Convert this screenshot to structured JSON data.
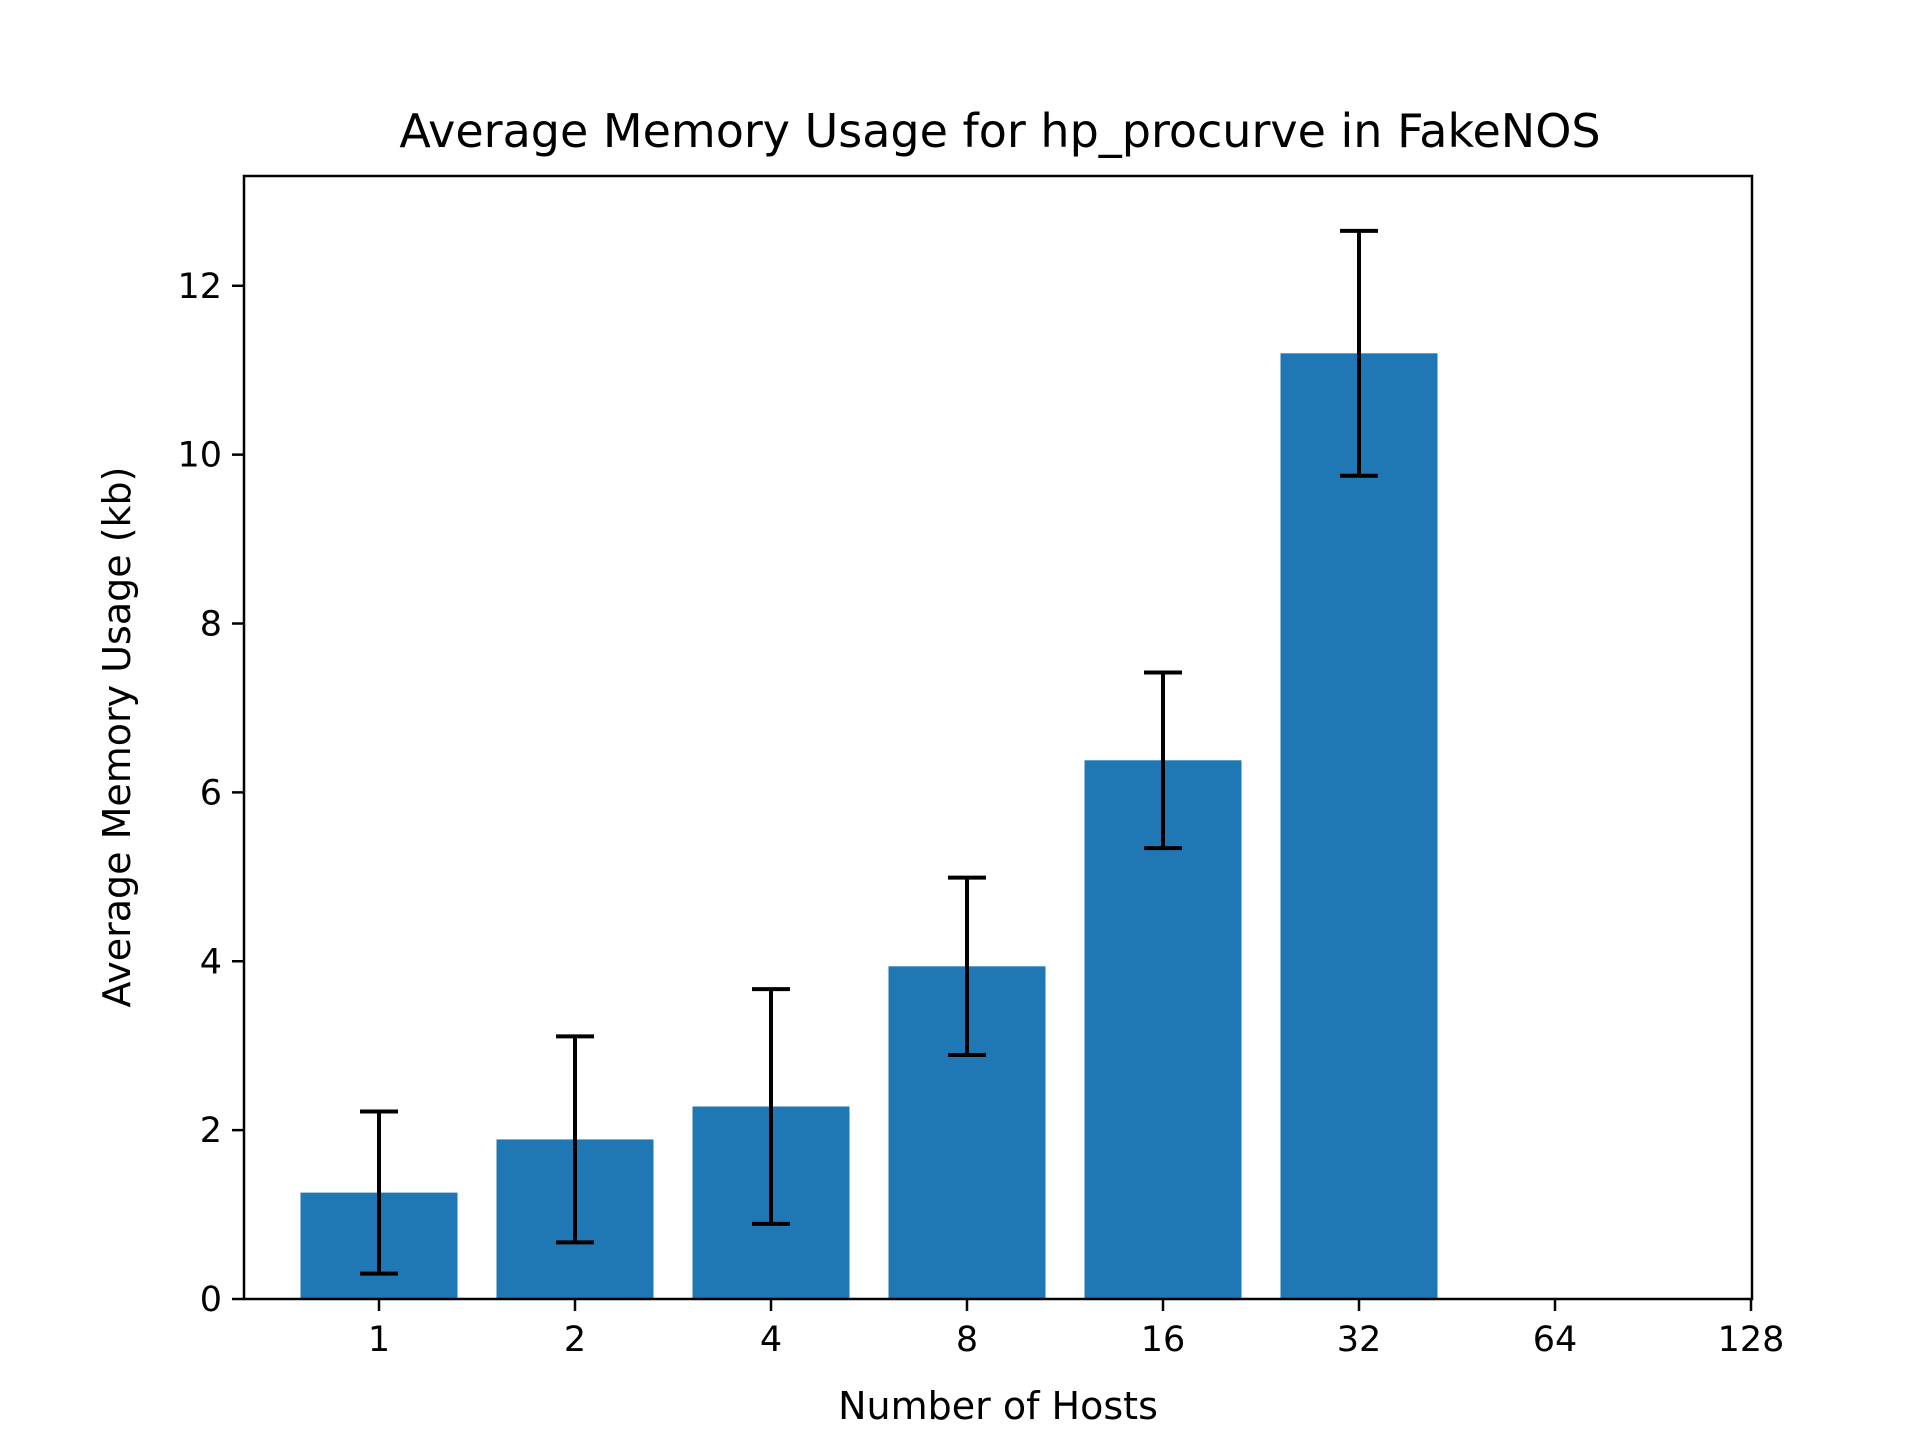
{
  "chart_data": {
    "type": "bar",
    "title": "Average Memory Usage for hp_procurve in FakeNOS",
    "xlabel": "Number of Hosts",
    "ylabel": "Average Memory Usage (kb)",
    "categories": [
      "1",
      "2",
      "4",
      "8",
      "16",
      "32",
      "64",
      "128"
    ],
    "values": [
      1.26,
      1.89,
      2.28,
      3.94,
      6.38,
      11.2,
      null,
      null
    ],
    "errors": [
      0.96,
      1.22,
      1.39,
      1.05,
      1.04,
      1.45,
      null,
      null
    ],
    "ylim": [
      0,
      13.3
    ],
    "yticks": [
      0,
      2,
      4,
      6,
      8,
      10,
      12
    ],
    "grid": false,
    "legend": "none",
    "colors": {
      "bar": "#1f77b4",
      "error": "#000000",
      "axes": "#000000"
    }
  }
}
